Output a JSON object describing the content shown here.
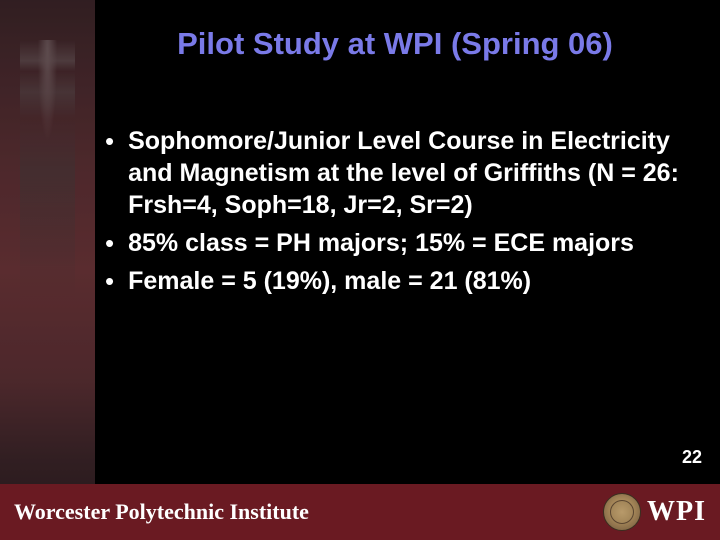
{
  "title": "Pilot Study at WPI (Spring 06)",
  "bullets": [
    "Sophomore/Junior Level Course in Electricity and Magnetism at the level of Griffiths (N = 26:  Frsh=4, Soph=18, Jr=2, Sr=2)",
    "85% class = PH majors;  15% = ECE majors",
    "Female = 5 (19%), male = 21 (81%)"
  ],
  "page_number": "22",
  "footer": {
    "institute": "Worcester Polytechnic Institute",
    "logo_text": "WPI"
  },
  "colors": {
    "background": "#000000",
    "title_color": "#7a7ae8",
    "body_text": "#ffffff",
    "footer_bg": "#6a1a22",
    "strip_tint": "#5a2f33"
  }
}
